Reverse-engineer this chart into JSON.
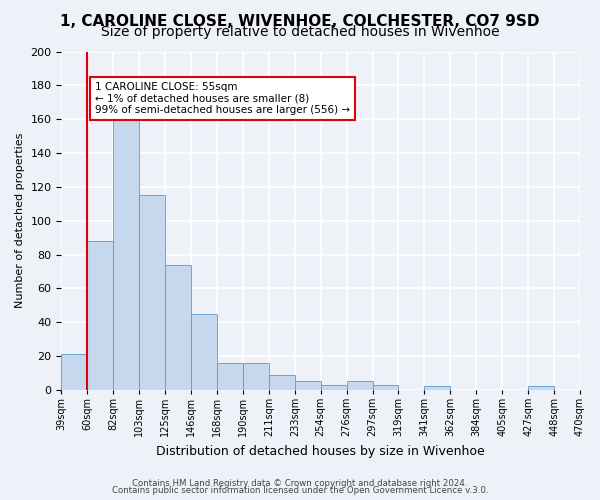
{
  "title_line1": "1, CAROLINE CLOSE, WIVENHOE, COLCHESTER, CO7 9SD",
  "title_line2": "Size of property relative to detached houses in Wivenhoe",
  "xlabel": "Distribution of detached houses by size in Wivenhoe",
  "ylabel": "Number of detached properties",
  "bin_labels": [
    "39sqm",
    "60sqm",
    "82sqm",
    "103sqm",
    "125sqm",
    "146sqm",
    "168sqm",
    "190sqm",
    "211sqm",
    "233sqm",
    "254sqm",
    "276sqm",
    "297sqm",
    "319sqm",
    "341sqm",
    "362sqm",
    "384sqm",
    "405sqm",
    "427sqm",
    "448sqm",
    "470sqm"
  ],
  "bar_values": [
    21,
    88,
    168,
    115,
    74,
    45,
    16,
    16,
    9,
    5,
    3,
    5,
    3,
    0,
    2,
    0,
    0,
    0,
    2,
    0
  ],
  "bar_color": "#c5d8ed",
  "bar_edge_color": "#5b9bd5",
  "ylim": [
    0,
    200
  ],
  "yticks": [
    0,
    20,
    40,
    60,
    80,
    100,
    120,
    140,
    160,
    180,
    200
  ],
  "marker_color": "#e0000a",
  "annotation_title": "1 CAROLINE CLOSE: 55sqm",
  "annotation_line1": "← 1% of detached houses are smaller (8)",
  "annotation_line2": "99% of semi-detached houses are larger (556) →",
  "annotation_box_color": "#ffffff",
  "annotation_box_edge": "#e0000a",
  "footer_line1": "Contains HM Land Registry data © Crown copyright and database right 2024.",
  "footer_line2": "Contains public sector information licensed under the Open Government Licence v.3.0.",
  "bg_color": "#eef2f8",
  "plot_bg_color": "#eef2f8",
  "grid_color": "#ffffff",
  "title_fontsize": 11,
  "subtitle_fontsize": 10
}
